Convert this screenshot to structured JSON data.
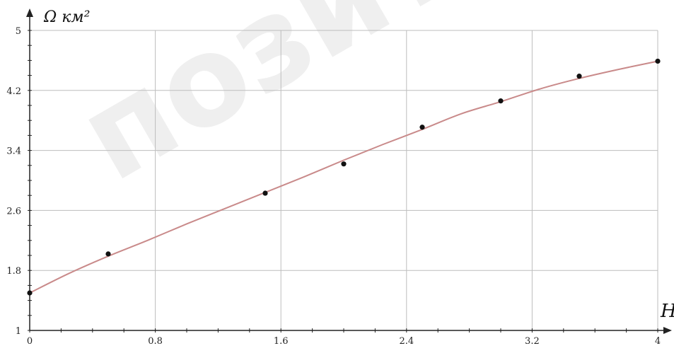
{
  "watermark": "позитор",
  "chart_data": {
    "type": "line",
    "title": "",
    "xlabel": "H",
    "ylabel": "Ω км²",
    "xlim": [
      0,
      4
    ],
    "ylim": [
      1,
      5
    ],
    "xticks": [
      "0",
      "0.8",
      "1.6",
      "2.4",
      "3.2",
      "4"
    ],
    "yticks": [
      "1",
      "1.8",
      "2.6",
      "3.4",
      "4.2",
      "5"
    ],
    "grid": true,
    "legend": "none",
    "line_color": "#c98a8a",
    "point_color": "#111111",
    "series": [
      {
        "type": "scatter",
        "x": [
          0,
          0.5,
          1.5,
          2.0,
          2.5,
          3.0,
          3.5,
          4.0
        ],
        "y": [
          1.5,
          2.02,
          2.83,
          3.22,
          3.71,
          4.06,
          4.39,
          4.59
        ]
      },
      {
        "type": "line",
        "x": [
          0,
          0.25,
          0.5,
          0.75,
          1.0,
          1.25,
          1.5,
          1.75,
          2.0,
          2.25,
          2.5,
          2.75,
          3.0,
          3.25,
          3.5,
          3.75,
          4.0
        ],
        "y": [
          1.5,
          1.76,
          1.99,
          2.2,
          2.42,
          2.63,
          2.84,
          3.05,
          3.27,
          3.48,
          3.68,
          3.89,
          4.05,
          4.22,
          4.36,
          4.48,
          4.59
        ]
      }
    ]
  }
}
